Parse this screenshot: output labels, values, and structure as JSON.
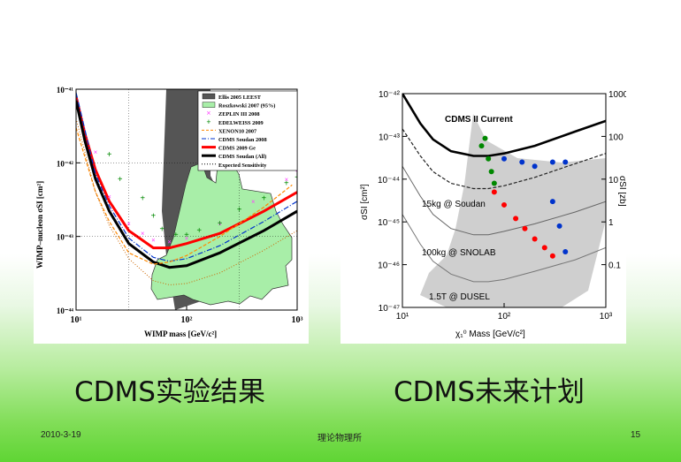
{
  "slide": {
    "caption_left": "CDMS实验结果",
    "caption_right": "CDMS未来计划",
    "footer_date": "2010-3-19",
    "footer_center": "理论物理所",
    "footer_page": "15"
  },
  "colors": {
    "red": "#ff0000",
    "black": "#000000",
    "blue": "#0033cc",
    "green": "#008800",
    "magenta": "#ff44ff",
    "orange": "#ff8800",
    "dark_gray": "#555555",
    "light_green": "#99ee99"
  },
  "chart_data": [
    {
      "type": "line",
      "xlabel": "WIMP mass [GeV/c²]",
      "ylabel": "WIMP–nucleon σSI [cm²]",
      "xscale": "log",
      "yscale": "log",
      "xlim": [
        10,
        1000
      ],
      "ylim": [
        1e-44,
        1e-41
      ],
      "xticks": [
        "10¹",
        "10²",
        "10³"
      ],
      "yticks": [
        "10⁻⁴¹",
        "10⁻⁴²",
        "10⁻⁴³",
        "10⁻⁴⁴"
      ],
      "legend_position": "top-right",
      "legend": [
        "Ellis 2005 LEEST",
        "Roszkowski 2007 (95%)",
        "ZEPLIN III 2008",
        "EDELWEISS 2009",
        "XENON10 2007",
        "CDMS Soudan 2008",
        "CDMS 2009 Ge",
        "CDMS Soudan (All)",
        "Expected Sensitivity"
      ],
      "series": [
        {
          "name": "CDMS 2009 Ge",
          "x": [
            10,
            12,
            15,
            20,
            30,
            50,
            70,
            100,
            200,
            500,
            1000
          ],
          "y": [
            8e-42,
            2.5e-42,
            8e-43,
            3e-43,
            1.2e-43,
            7e-44,
            7e-44,
            8e-44,
            1.1e-43,
            2.2e-43,
            4e-43
          ]
        },
        {
          "name": "CDMS Soudan (All)",
          "x": [
            10,
            12,
            15,
            20,
            30,
            50,
            70,
            100,
            200,
            500,
            1000
          ],
          "y": [
            7e-42,
            2e-42,
            6e-43,
            2.2e-43,
            8e-44,
            4.5e-44,
            3.8e-44,
            4e-44,
            6e-44,
            1.2e-43,
            2.2e-43
          ]
        },
        {
          "name": "CDMS Soudan 2008",
          "x": [
            10,
            15,
            20,
            30,
            50,
            70,
            100,
            200,
            500,
            1000
          ],
          "y": [
            9e-42,
            7e-43,
            2.6e-43,
            9.5e-44,
            5.2e-44,
            4.6e-44,
            5e-44,
            7.5e-44,
            1.6e-43,
            3e-43
          ]
        },
        {
          "name": "XENON10 2007",
          "x": [
            10,
            15,
            20,
            30,
            50,
            70,
            100,
            200,
            500,
            900
          ],
          "y": [
            3e-42,
            4e-43,
            1.6e-43,
            6e-44,
            4.2e-44,
            4.5e-44,
            5.5e-44,
            1e-43,
            2.5e-43,
            5e-43
          ]
        },
        {
          "name": "ZEPLIN III 2008",
          "x": [
            15,
            20,
            30,
            40,
            50,
            70,
            100,
            200,
            400,
            800,
            1000
          ],
          "y": [
            1.4e-42,
            3.5e-43,
            1.5e-43,
            1.1e-43,
            9e-44,
            8.5e-44,
            9.5e-44,
            1.5e-43,
            3e-43,
            6e-43,
            8e-43
          ]
        },
        {
          "name": "EDELWEISS 2009",
          "x": [
            20,
            25,
            40,
            50,
            60,
            80,
            100,
            130,
            200,
            300,
            500,
            800,
            1000
          ],
          "y": [
            1.3e-42,
            6e-43,
            3.3e-43,
            1.9e-43,
            1.25e-43,
            1.05e-43,
            1.05e-43,
            1.2e-43,
            1.5e-43,
            2.3e-43,
            3.3e-43,
            5.3e-43,
            6.3e-43
          ]
        },
        {
          "name": "Expected Sensitivity",
          "x": [
            10,
            15,
            20,
            30,
            50,
            70,
            100,
            200,
            500,
            1000
          ],
          "y": [
            4e-42,
            4e-43,
            1.4e-43,
            5e-44,
            2.5e-44,
            2.2e-44,
            2.3e-44,
            3.2e-44,
            6.5e-44,
            1.2e-43
          ]
        }
      ]
    },
    {
      "type": "scatter",
      "xlabel": "χ₁⁰ Mass [GeV/c²]",
      "ylabel": "σSI [cm²]",
      "y2label": "σSI [zb]",
      "xscale": "log",
      "yscale": "log",
      "xlim": [
        10,
        1000
      ],
      "ylim": [
        1e-47,
        1e-42
      ],
      "xticks": [
        "10¹",
        "10²",
        "10³"
      ],
      "yticks": [
        "10⁻⁴²",
        "10⁻⁴³",
        "10⁻⁴⁴",
        "10⁻⁴⁵",
        "10⁻⁴⁶",
        "10⁻⁴⁷"
      ],
      "y2ticks": [
        "1000",
        "100",
        "10",
        "1",
        "0.1"
      ],
      "annotations": [
        "CDMS II Current",
        "15kg @ Soudan",
        "100kg @ SNOLAB",
        "1.5T @ DUSEL"
      ],
      "series": [
        {
          "name": "CDMS II Current",
          "x": [
            10,
            15,
            20,
            30,
            50,
            70,
            100,
            200,
            500,
            1000
          ],
          "y": [
            1e-42,
            2e-43,
            8.5e-44,
            4.5e-44,
            3.5e-44,
            3.5e-44,
            4e-44,
            6e-44,
            1.3e-43,
            2.3e-43
          ]
        },
        {
          "name": "15kg @ Soudan",
          "x": [
            10,
            15,
            20,
            30,
            50,
            70,
            100,
            200,
            500,
            1000
          ],
          "y": [
            1.5e-43,
            3.5e-44,
            1.5e-44,
            8e-45,
            6e-45,
            6e-45,
            7e-45,
            1.1e-44,
            2.3e-44,
            4e-44
          ]
        },
        {
          "name": "100kg @ SNOLAB",
          "x": [
            10,
            15,
            20,
            30,
            50,
            70,
            100,
            200,
            500,
            1000
          ],
          "y": [
            2e-44,
            4e-45,
            1.5e-45,
            7e-46,
            5e-46,
            5e-46,
            6e-46,
            9e-46,
            1.7e-45,
            3e-45
          ]
        },
        {
          "name": "1.5T @ DUSEL",
          "x": [
            10,
            15,
            20,
            30,
            50,
            70,
            100,
            200,
            500,
            1000
          ],
          "y": [
            1.5e-45,
            3e-46,
            1.2e-46,
            6e-47,
            4e-47,
            4e-47,
            4.5e-47,
            7e-47,
            1.3e-46,
            2.5e-46
          ]
        },
        {
          "name": "green points",
          "x": [
            60,
            65,
            70,
            75,
            80
          ],
          "y": [
            6e-44,
            9e-44,
            3e-44,
            1.5e-44,
            8e-45
          ]
        },
        {
          "name": "red points",
          "x": [
            80,
            100,
            130,
            160,
            200,
            250,
            300
          ],
          "y": [
            5e-45,
            2.5e-45,
            1.2e-45,
            7e-46,
            4e-46,
            2.5e-46,
            1.6e-46
          ]
        },
        {
          "name": "blue points",
          "x": [
            100,
            150,
            200,
            300,
            400,
            300,
            350,
            400
          ],
          "y": [
            3e-44,
            2.5e-44,
            2e-44,
            2.5e-44,
            2.5e-44,
            3e-45,
            8e-46,
            2e-46
          ]
        }
      ]
    }
  ]
}
